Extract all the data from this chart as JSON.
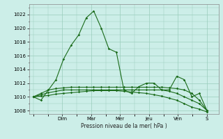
{
  "xlabel": "Pression niveau de la mer( hPa )",
  "ylim": [
    1007.5,
    1023.5
  ],
  "yticks": [
    1008,
    1010,
    1012,
    1014,
    1016,
    1018,
    1020,
    1022
  ],
  "day_labels": [
    "Dim",
    "Mar",
    "Mer",
    "Jeu",
    "Ven",
    "S"
  ],
  "day_positions": [
    2,
    4,
    6,
    8,
    10,
    12
  ],
  "bg_color": "#cceee8",
  "grid_color": "#99ccbb",
  "line_color": "#1a6b1a",
  "main_series": [
    1010.0,
    1009.5,
    1011.0,
    1012.5,
    1015.5,
    1017.5,
    1019.0,
    1021.5,
    1022.5,
    1020.0,
    1017.0,
    1016.5,
    1011.0,
    1010.5,
    1011.5,
    1012.0,
    1012.0,
    1011.0,
    1011.0,
    1013.0,
    1012.5,
    1010.0,
    1010.5,
    1008.0
  ],
  "flat_series1": [
    1010.0,
    1010.5,
    1011.0,
    1011.2,
    1011.3,
    1011.4,
    1011.4,
    1011.4,
    1011.4,
    1011.4,
    1011.4,
    1011.4,
    1011.4,
    1011.4,
    1011.4,
    1011.4,
    1011.4,
    1011.4,
    1011.3,
    1011.2,
    1011.0,
    1010.5,
    1009.5,
    1008.0
  ],
  "flat_series2": [
    1010.0,
    1010.3,
    1010.6,
    1010.8,
    1011.0,
    1011.0,
    1011.0,
    1011.0,
    1011.0,
    1011.0,
    1011.0,
    1011.0,
    1011.0,
    1011.0,
    1011.0,
    1011.0,
    1011.0,
    1011.0,
    1010.8,
    1010.5,
    1010.0,
    1009.5,
    1009.0,
    1008.0
  ],
  "flat_series3": [
    1010.0,
    1010.1,
    1010.2,
    1010.4,
    1010.5,
    1010.6,
    1010.7,
    1010.8,
    1010.9,
    1010.9,
    1010.9,
    1010.9,
    1010.8,
    1010.7,
    1010.6,
    1010.5,
    1010.3,
    1010.1,
    1009.8,
    1009.5,
    1009.0,
    1008.5,
    1008.2,
    1007.8
  ]
}
